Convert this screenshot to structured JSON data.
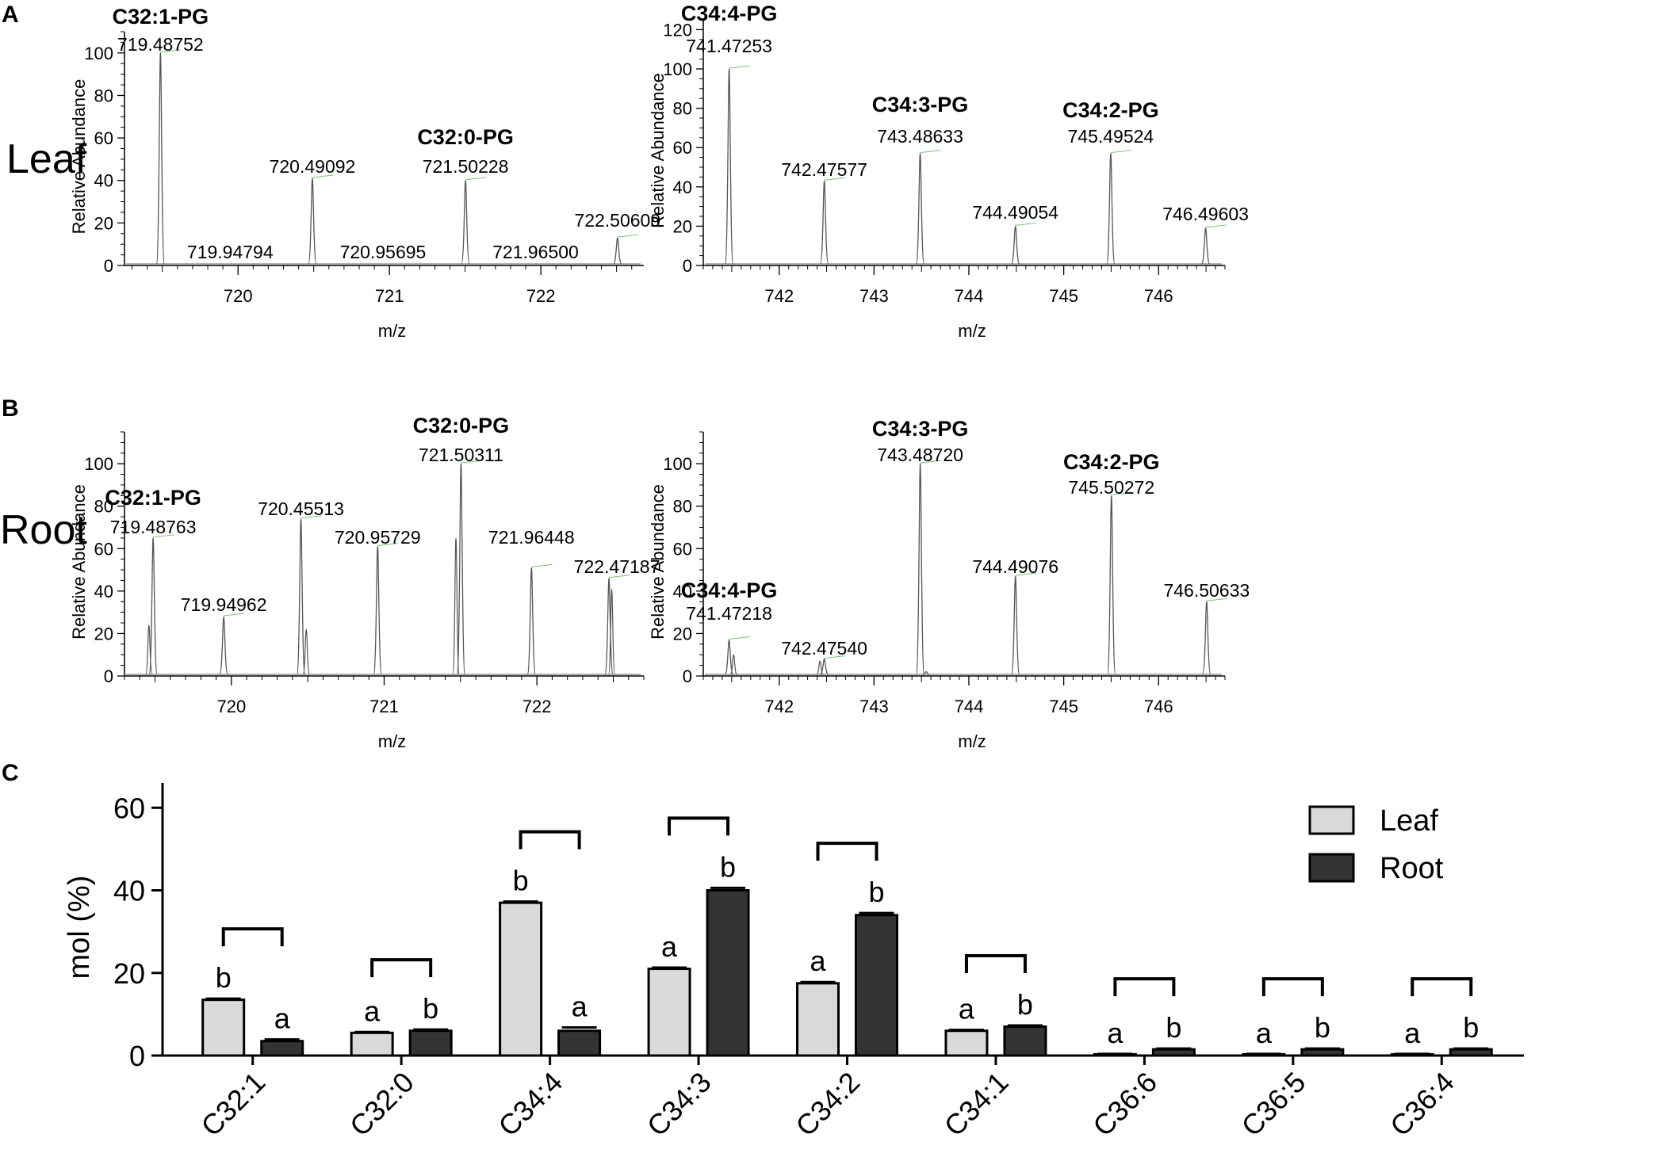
{
  "figure": {
    "panel_labels": [
      "A",
      "B",
      "C"
    ],
    "row_labels": [
      "Leaf",
      "Root"
    ]
  },
  "chart_data": [
    {
      "id": "A-left",
      "type": "line",
      "subtype": "mass-spectrum",
      "panel": "A",
      "row": "Leaf",
      "xlabel": "m/z",
      "ylabel": "Relative Abundance",
      "xlim": [
        719.25,
        722.68
      ],
      "ylim": [
        0,
        110
      ],
      "xticks": [
        720,
        721,
        722
      ],
      "yticks": [
        0,
        20,
        40,
        60,
        80,
        100
      ],
      "peaks": [
        {
          "mz": 719.48752,
          "label": "719.48752",
          "abundance": 100,
          "species": "C32:1-PG"
        },
        {
          "mz": 719.94794,
          "label": "719.94794",
          "abundance": 0
        },
        {
          "mz": 720.49092,
          "label": "720.49092",
          "abundance": 41
        },
        {
          "mz": 720.95695,
          "label": "720.95695",
          "abundance": 0
        },
        {
          "mz": 721.50228,
          "label": "721.50228",
          "abundance": 40,
          "species": "C32:0-PG"
        },
        {
          "mz": 721.965,
          "label": "721.96500",
          "abundance": 0
        },
        {
          "mz": 722.50609,
          "label": "722.50609",
          "abundance": 13
        }
      ]
    },
    {
      "id": "A-right",
      "type": "line",
      "subtype": "mass-spectrum",
      "panel": "A",
      "row": "Leaf",
      "xlabel": "m/z",
      "ylabel": "Relative Abundance",
      "xlim": [
        741.2,
        746.7
      ],
      "ylim": [
        0,
        125
      ],
      "xticks": [
        742,
        743,
        744,
        745,
        746
      ],
      "yticks": [
        0,
        20,
        40,
        60,
        80,
        100,
        120
      ],
      "peaks": [
        {
          "mz": 741.47253,
          "label": "741.47253",
          "abundance": 100,
          "species": "C34:4-PG"
        },
        {
          "mz": 742.47577,
          "label": "742.47577",
          "abundance": 43
        },
        {
          "mz": 743.48633,
          "label": "743.48633",
          "abundance": 57,
          "species": "C34:3-PG"
        },
        {
          "mz": 744.49054,
          "label": "744.49054",
          "abundance": 20
        },
        {
          "mz": 745.49524,
          "label": "745.49524",
          "abundance": 57,
          "species": "C34:2-PG"
        },
        {
          "mz": 746.49603,
          "label": "746.49603",
          "abundance": 19
        }
      ]
    },
    {
      "id": "B-left",
      "type": "line",
      "subtype": "mass-spectrum",
      "panel": "B",
      "row": "Root",
      "xlabel": "m/z",
      "ylabel": "Relative Abundance",
      "xlim": [
        719.3,
        722.7
      ],
      "ylim": [
        0,
        115
      ],
      "xticks": [
        720,
        721,
        722
      ],
      "yticks": [
        0,
        20,
        40,
        60,
        80,
        100
      ],
      "peaks": [
        {
          "mz": 719.48763,
          "label": "719.48763",
          "abundance": 65,
          "species": "C32:1-PG"
        },
        {
          "mz": 719.94962,
          "label": "719.94962",
          "abundance": 28
        },
        {
          "mz": 720.45513,
          "label": "720.45513",
          "abundance": 74
        },
        {
          "mz": 720.95729,
          "label": "720.95729",
          "abundance": 61
        },
        {
          "mz": 721.50311,
          "label": "721.50311",
          "abundance": 100,
          "species": "C32:0-PG"
        },
        {
          "mz": 721.96448,
          "label": "721.96448",
          "abundance": 51
        },
        {
          "mz": 722.47187,
          "label": "722.47187",
          "abundance": 46
        }
      ],
      "minor_peaks": [
        {
          "mz": 719.46,
          "abundance": 24
        },
        {
          "mz": 720.49,
          "abundance": 22
        },
        {
          "mz": 721.47,
          "abundance": 65
        },
        {
          "mz": 722.49,
          "abundance": 41
        }
      ]
    },
    {
      "id": "B-right",
      "type": "line",
      "subtype": "mass-spectrum",
      "panel": "B",
      "row": "Root",
      "xlabel": "m/z",
      "ylabel": "Relative Abundance",
      "xlim": [
        741.2,
        746.7
      ],
      "ylim": [
        0,
        115
      ],
      "xticks": [
        742,
        743,
        744,
        745,
        746
      ],
      "yticks": [
        0,
        20,
        40,
        60,
        80,
        100
      ],
      "peaks": [
        {
          "mz": 741.47218,
          "label": "741.47218",
          "abundance": 17,
          "species": "C34:4-PG"
        },
        {
          "mz": 742.4754,
          "label": "742.47540",
          "abundance": 8
        },
        {
          "mz": 743.4872,
          "label": "743.48720",
          "abundance": 100,
          "species": "C34:3-PG"
        },
        {
          "mz": 744.49076,
          "label": "744.49076",
          "abundance": 47
        },
        {
          "mz": 745.50272,
          "label": "745.50272",
          "abundance": 85,
          "species": "C34:2-PG"
        },
        {
          "mz": 746.50633,
          "label": "746.50633",
          "abundance": 35
        }
      ],
      "minor_peaks": [
        {
          "mz": 741.52,
          "abundance": 10
        },
        {
          "mz": 742.43,
          "abundance": 7
        },
        {
          "mz": 743.55,
          "abundance": 2
        }
      ]
    },
    {
      "id": "C",
      "type": "bar",
      "panel": "C",
      "xlabel": "",
      "ylabel": "mol (%)",
      "ylim": [
        0,
        66
      ],
      "yticks": [
        0,
        20,
        40,
        60
      ],
      "categories": [
        "C32:1",
        "C32:0",
        "C34:4",
        "C34:3",
        "C34:2",
        "C34:1",
        "C36:6",
        "C36:5",
        "C36:4"
      ],
      "series": [
        {
          "name": "Leaf",
          "color": "#d9d9d9",
          "values": [
            13.5,
            5.5,
            37.0,
            21.0,
            17.5,
            6.0,
            0.3,
            0.3,
            0.3
          ],
          "errors": [
            0.3,
            0.2,
            0.3,
            0.3,
            0.3,
            0.2,
            0.1,
            0.1,
            0.1
          ],
          "letters": [
            "b",
            "a",
            "b",
            "a",
            "a",
            "a",
            "a",
            "a",
            "a"
          ]
        },
        {
          "name": "Root",
          "color": "#333333",
          "values": [
            3.5,
            6.0,
            6.0,
            40.0,
            34.0,
            7.0,
            1.5,
            1.5,
            1.5
          ],
          "errors": [
            0.4,
            0.3,
            0.8,
            0.6,
            0.5,
            0.3,
            0.2,
            0.2,
            0.2
          ],
          "letters": [
            "a",
            "b",
            "a",
            "b",
            "b",
            "b",
            "b",
            "b",
            "b"
          ]
        }
      ],
      "legend": [
        "Leaf",
        "Root"
      ],
      "legend_position": "top-right"
    }
  ]
}
